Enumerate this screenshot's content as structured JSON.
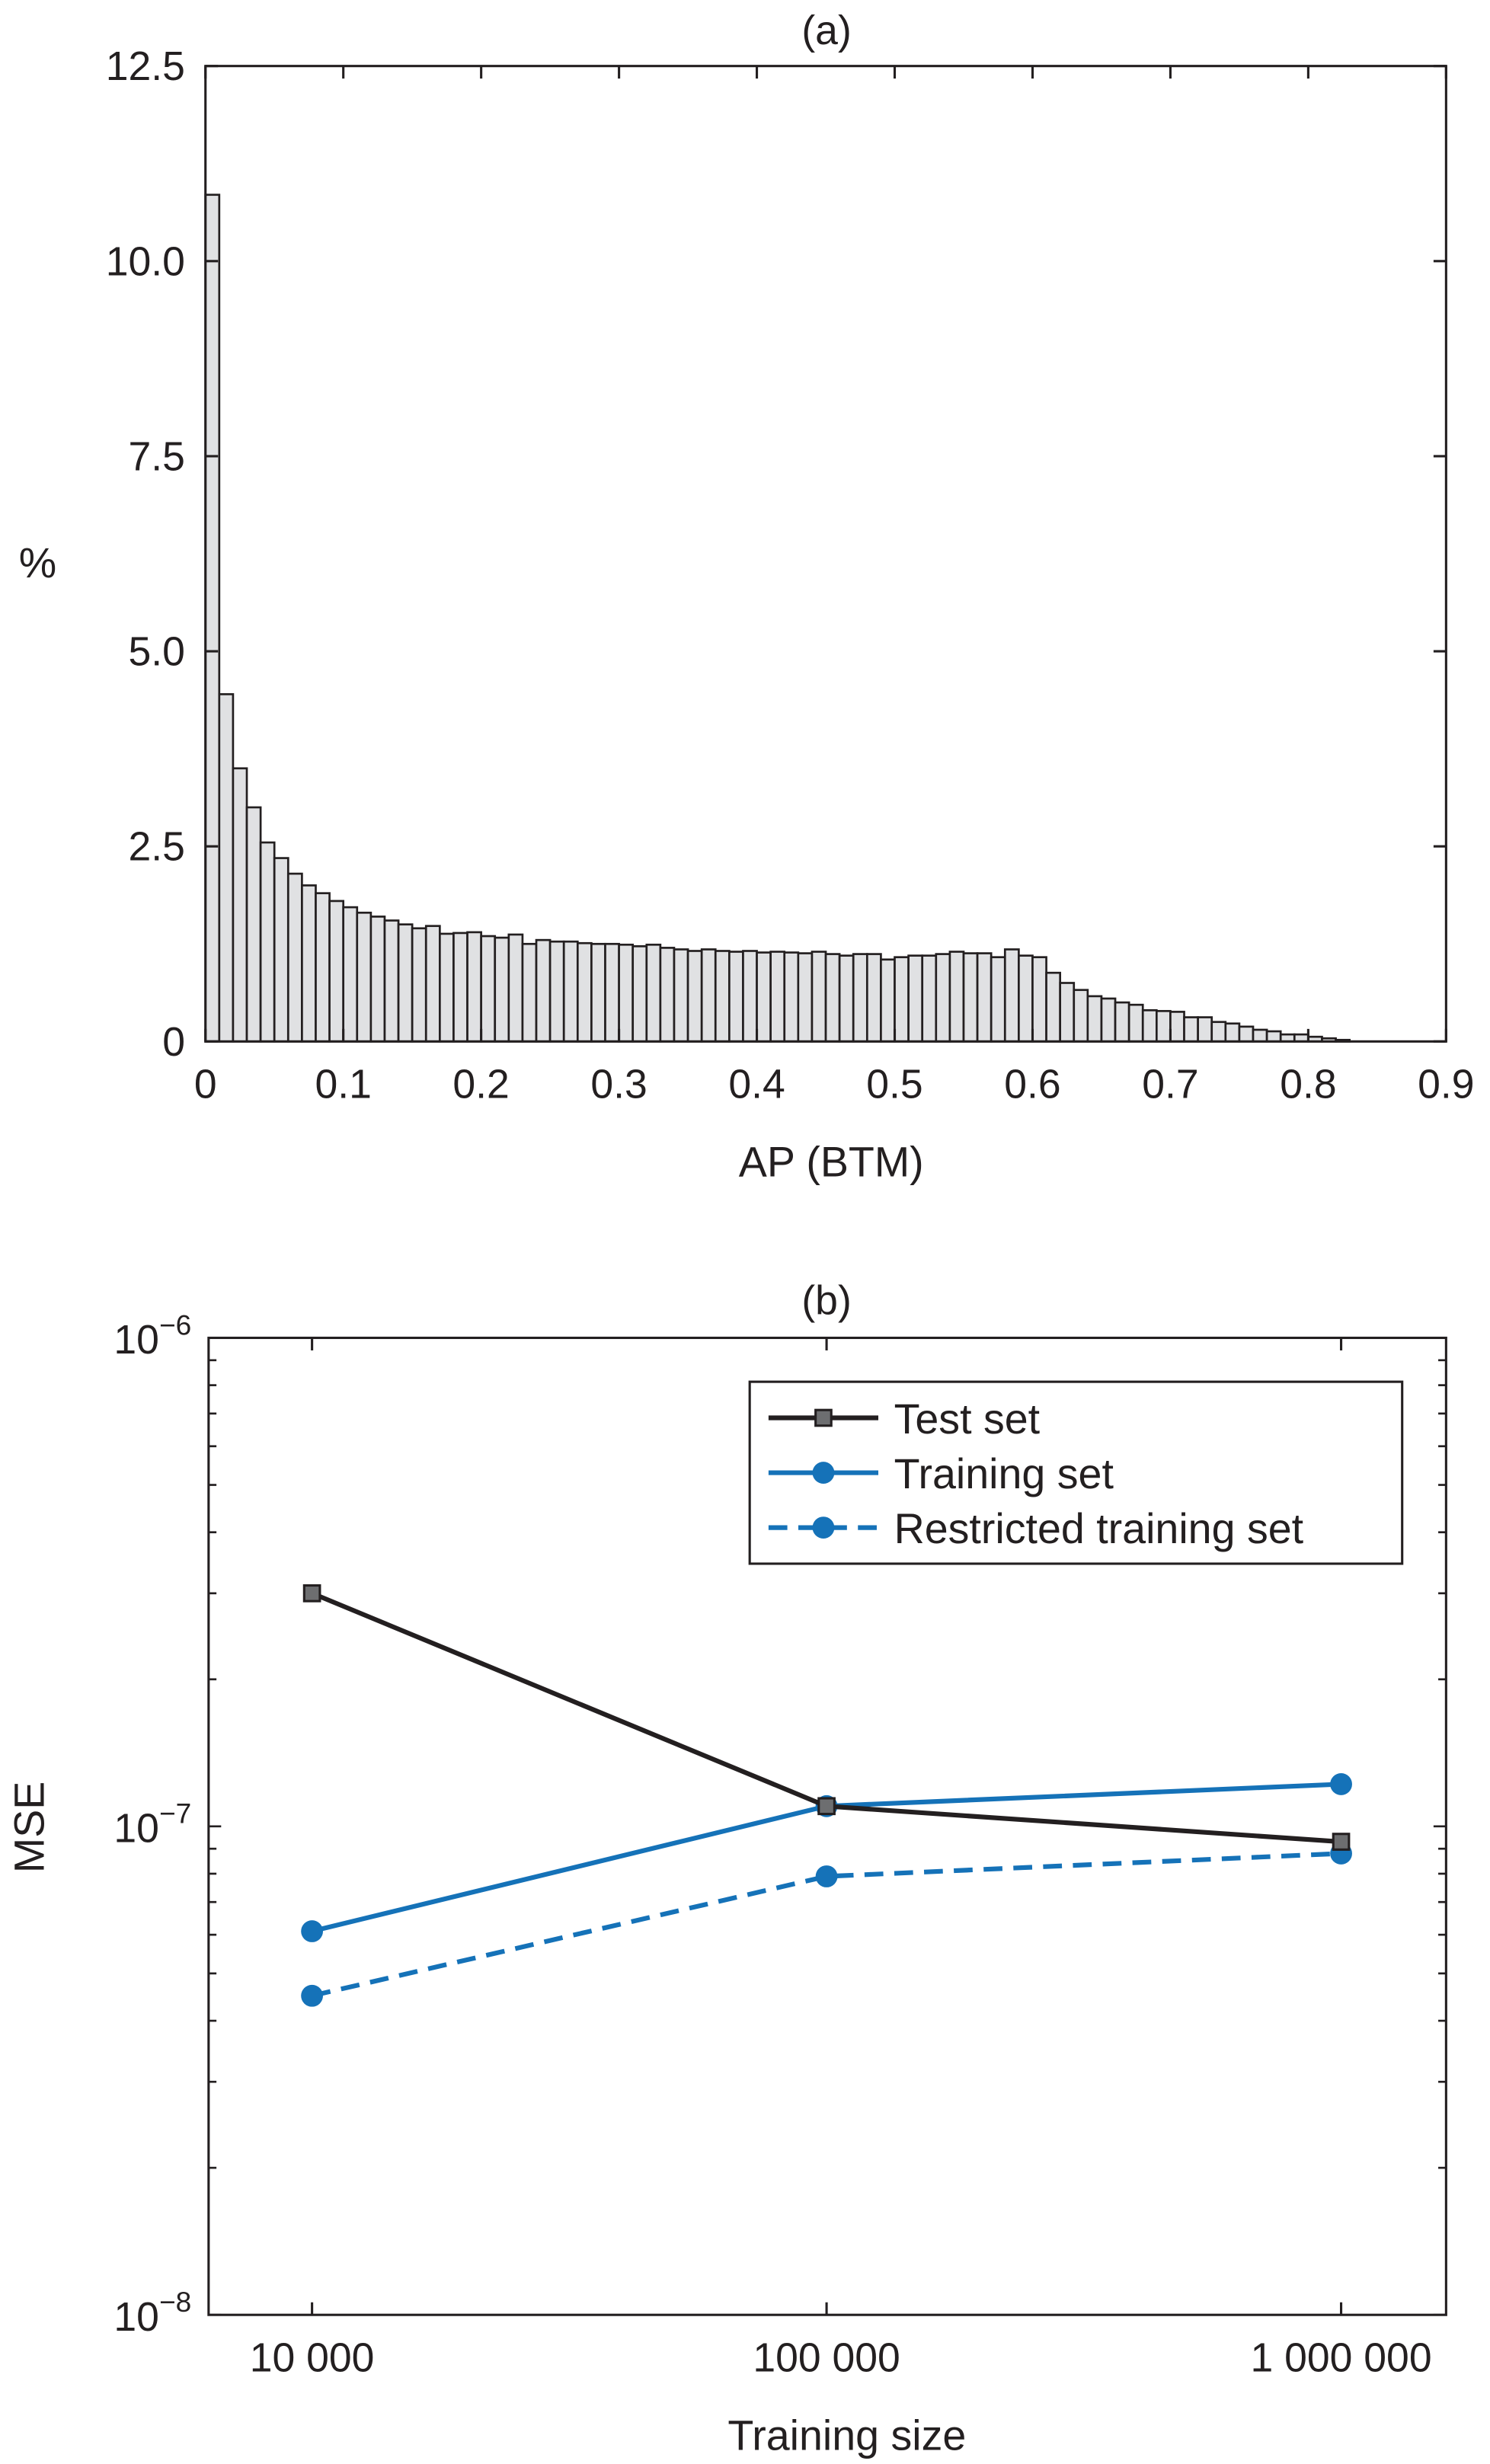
{
  "chart_data": [
    {
      "type": "bar",
      "title": "(a)",
      "xlabel": "AP (BTM)",
      "ylabel": "%",
      "xlim": [
        0,
        0.9
      ],
      "ylim": [
        0,
        12.5
      ],
      "bin_width": 0.01,
      "bin_start": 0,
      "xticks": [
        0,
        0.1,
        0.2,
        0.3,
        0.4,
        0.5,
        0.6,
        0.7,
        0.8,
        0.9
      ],
      "xtick_labels": [
        "0",
        "0.1",
        "0.2",
        "0.3",
        "0.4",
        "0.5",
        "0.6",
        "0.7",
        "0.8",
        "0.9"
      ],
      "yticks": [
        0,
        2.5,
        5,
        7.5,
        10,
        12.5
      ],
      "ytick_labels": [
        "0",
        "2.5",
        "5.0",
        "7.5",
        "10.0",
        "12.5"
      ],
      "values": [
        10.85,
        4.45,
        3.5,
        3.0,
        2.55,
        2.35,
        2.15,
        2.0,
        1.9,
        1.8,
        1.72,
        1.65,
        1.6,
        1.55,
        1.5,
        1.45,
        1.48,
        1.38,
        1.39,
        1.4,
        1.35,
        1.33,
        1.37,
        1.25,
        1.3,
        1.28,
        1.28,
        1.26,
        1.25,
        1.25,
        1.24,
        1.22,
        1.24,
        1.2,
        1.18,
        1.16,
        1.18,
        1.16,
        1.15,
        1.16,
        1.14,
        1.15,
        1.14,
        1.13,
        1.15,
        1.12,
        1.1,
        1.12,
        1.12,
        1.05,
        1.08,
        1.1,
        1.1,
        1.12,
        1.15,
        1.13,
        1.13,
        1.08,
        1.18,
        1.1,
        1.08,
        0.88,
        0.75,
        0.66,
        0.58,
        0.55,
        0.5,
        0.47,
        0.4,
        0.39,
        0.38,
        0.31,
        0.31,
        0.25,
        0.23,
        0.19,
        0.15,
        0.13,
        0.09,
        0.09,
        0.06,
        0.04,
        0.02
      ],
      "colors": {
        "fill": "#e0e1e3",
        "stroke": "#231f20"
      }
    },
    {
      "type": "line",
      "title": "(b)",
      "xlabel": "Training size",
      "ylabel": "MSE",
      "xscale": "log",
      "yscale": "log",
      "x": [
        10000,
        100000,
        1000000
      ],
      "xtick_labels": [
        "10 000",
        "100 000",
        "1 000 000"
      ],
      "ylim": [
        1e-08,
        1e-06
      ],
      "ytick_labels": [
        {
          "base": "10",
          "exp": "−8"
        },
        {
          "base": "10",
          "exp": "−7"
        },
        {
          "base": "10",
          "exp": "−6"
        }
      ],
      "legend_position": "top-right",
      "series": [
        {
          "name": "Test set",
          "values": [
            3e-07,
            1.1e-07,
            9.3e-08
          ],
          "color": "#231f20",
          "marker": "square",
          "dash": false
        },
        {
          "name": "Training set",
          "values": [
            6.1e-08,
            1.1e-07,
            1.22e-07
          ],
          "color": "#1572b8",
          "marker": "circle",
          "dash": false
        },
        {
          "name": "Restricted training set",
          "values": [
            4.5e-08,
            7.9e-08,
            8.8e-08
          ],
          "color": "#1572b8",
          "marker": "circle",
          "dash": true
        }
      ]
    }
  ]
}
